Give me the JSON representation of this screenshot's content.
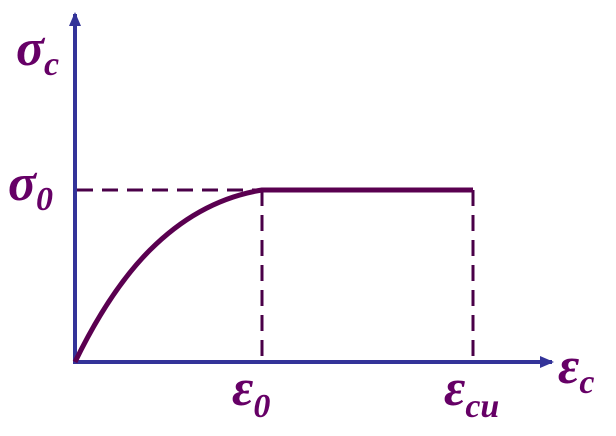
{
  "labels": {
    "y_axis": {
      "symbol": "σ",
      "subscript": "c"
    },
    "peak_stress": {
      "symbol": "σ",
      "subscript": "0"
    },
    "peak_strain": {
      "symbol": "ε",
      "subscript": "0"
    },
    "ultimate_strain": {
      "symbol": "ε",
      "subscript": "cu"
    },
    "x_axis": {
      "symbol": "ε",
      "subscript": "c"
    }
  }
}
